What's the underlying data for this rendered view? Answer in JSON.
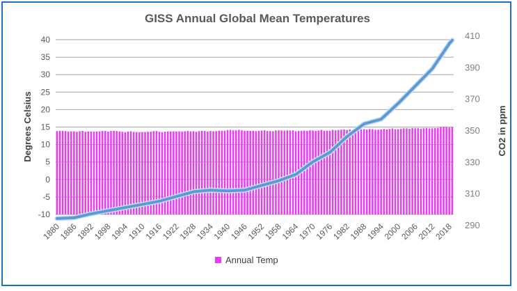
{
  "chart_data": {
    "type": "bar+line",
    "title": "GISS Annual Global Mean Temperatures",
    "ylabel": "Degrees Celsius",
    "y2label": "CO2 in ppm",
    "ylim": [
      -10,
      40
    ],
    "yticks": [
      -10,
      -5,
      0,
      5,
      10,
      15,
      20,
      25,
      30,
      35,
      40
    ],
    "y2lim": [
      290,
      410
    ],
    "y2ticks": [
      290,
      310,
      330,
      350,
      370,
      390,
      410
    ],
    "xticks": [
      "1880",
      "1886",
      "1892",
      "1898",
      "1904",
      "1910",
      "1916",
      "1922",
      "1928",
      "1934",
      "1940",
      "1946",
      "1952",
      "1958",
      "1964",
      "1970",
      "1976",
      "1982",
      "1988",
      "1994",
      "2000",
      "2006",
      "2012",
      "2018"
    ],
    "grid": true,
    "legend": {
      "position": "bottom",
      "entries": [
        "Annual Temp"
      ]
    },
    "colors": {
      "bars": "#e63ef0",
      "line": "#5b9bd5",
      "frame": "#1f6fc5"
    },
    "bar_series": {
      "name": "Annual Temp",
      "start_year": 1880,
      "values": [
        13.84,
        13.92,
        13.91,
        13.83,
        13.72,
        13.77,
        13.78,
        13.64,
        13.82,
        13.9,
        13.65,
        13.75,
        13.73,
        13.67,
        13.7,
        13.77,
        13.88,
        13.89,
        13.72,
        13.88,
        13.92,
        13.86,
        13.73,
        13.64,
        13.55,
        13.71,
        13.79,
        13.61,
        13.57,
        13.53,
        13.56,
        13.56,
        13.66,
        13.67,
        13.83,
        13.86,
        13.63,
        13.54,
        13.69,
        13.75,
        13.73,
        13.79,
        13.72,
        13.76,
        13.73,
        13.78,
        13.89,
        13.78,
        13.82,
        13.64,
        13.85,
        13.92,
        13.87,
        13.73,
        13.87,
        13.8,
        13.84,
        13.97,
        13.95,
        13.95,
        14.12,
        14.18,
        14.05,
        14.07,
        14.2,
        14.08,
        13.93,
        13.95,
        13.91,
        13.92,
        13.83,
        13.92,
        14.01,
        14.08,
        13.89,
        13.86,
        13.8,
        14.04,
        14.06,
        14.03,
        13.98,
        14.06,
        14.03,
        14.05,
        13.8,
        13.9,
        13.96,
        13.99,
        13.93,
        14.06,
        14.03,
        13.92,
        14.01,
        14.16,
        13.93,
        13.98,
        13.9,
        14.18,
        14.07,
        14.16,
        14.26,
        14.32,
        14.14,
        14.31,
        14.16,
        14.12,
        14.18,
        14.33,
        14.4,
        14.28,
        14.45,
        14.41,
        14.23,
        14.24,
        14.31,
        14.45,
        14.35,
        14.46,
        14.61,
        14.38,
        14.39,
        14.54,
        14.63,
        14.62,
        14.53,
        14.68,
        14.64,
        14.66,
        14.54,
        14.64,
        14.72,
        14.61,
        14.64,
        14.68,
        14.75,
        14.9,
        15.01,
        14.92,
        14.85,
        14.98
      ]
    },
    "line_series": {
      "x": [
        1880,
        1886,
        1892,
        1898,
        1904,
        1910,
        1916,
        1922,
        1928,
        1934,
        1940,
        1946,
        1952,
        1958,
        1964,
        1970,
        1976,
        1982,
        1988,
        1994,
        2000,
        2006,
        2012,
        2018,
        2019
      ],
      "values": [
        294,
        294.5,
        297,
        299,
        301,
        303,
        305,
        308,
        311,
        312,
        311.5,
        312,
        315,
        318,
        322,
        330,
        336,
        346,
        354,
        357,
        367,
        378,
        389,
        405,
        407
      ]
    }
  },
  "legend_label": "Annual Temp"
}
